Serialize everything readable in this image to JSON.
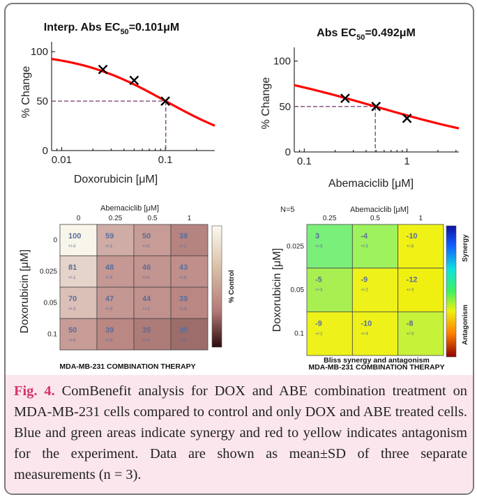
{
  "figure": {
    "caption_label": "Fig. 4.",
    "caption_text": " ComBenefit analysis for DOX and ABE combination treatment on MDA-MB-231 cells compared to control and only DOX and ABE treated cells. Blue and green areas indicate synergy and red to yellow indicates antagonism for the experiment. Data are shown as mean±SD of three separate measurements (n = 3)."
  },
  "chart_data": [
    {
      "type": "line",
      "title_prefix": "Interp. Abs EC",
      "title_sub": "50",
      "title_suffix": "=0.101μM",
      "xlabel": "Doxorubicin [μM]",
      "ylabel": "% Change",
      "xscale": "log",
      "xlim": [
        0.008,
        0.3
      ],
      "ylim": [
        0,
        110
      ],
      "xticks": [
        {
          "value": 0.01,
          "label": "0.01"
        },
        {
          "value": 0.1,
          "label": "0.1"
        }
      ],
      "yticks": [
        {
          "value": 0,
          "label": "0"
        },
        {
          "value": 50,
          "label": "50"
        },
        {
          "value": 100,
          "label": "100"
        }
      ],
      "fit": {
        "top": 100,
        "ec50": 0.101,
        "hill": 1.0
      },
      "points": [
        {
          "x": 0.025,
          "y": 82
        },
        {
          "x": 0.05,
          "y": 71
        },
        {
          "x": 0.1,
          "y": 50
        }
      ],
      "ec50_marker": {
        "x": 0.101,
        "y": 50
      },
      "colors": {
        "fit": "#ff0000",
        "marker": "#000000",
        "guide": "#7b4a78"
      }
    },
    {
      "type": "line",
      "title_prefix": "Abs EC",
      "title_sub": "50",
      "title_suffix": "=0.492μM",
      "xlabel": "Abemaciclib [μM]",
      "ylabel": "% Change",
      "xscale": "log",
      "xlim": [
        0.08,
        3.2
      ],
      "ylim": [
        0,
        115
      ],
      "xticks": [
        {
          "value": 0.1,
          "label": "0.1"
        },
        {
          "value": 1,
          "label": "1"
        }
      ],
      "yticks": [
        {
          "value": 0,
          "label": "0"
        },
        {
          "value": 50,
          "label": "50"
        },
        {
          "value": 100,
          "label": "100"
        }
      ],
      "fit": {
        "top": 100,
        "ec50": 0.492,
        "hill": 0.56
      },
      "points": [
        {
          "x": 0.25,
          "y": 59
        },
        {
          "x": 0.5,
          "y": 50
        },
        {
          "x": 1,
          "y": 37
        }
      ],
      "ec50_marker": {
        "x": 0.492,
        "y": 50
      },
      "colors": {
        "fit": "#ff0000",
        "marker": "#000000",
        "guide": "#7b4a78"
      }
    },
    {
      "type": "heatmap",
      "x_title": "Abemaciclib [μM]",
      "y_title": "Doxorubicin [μM]",
      "x_categories": [
        "0",
        "0.25",
        "0.5",
        "1"
      ],
      "y_categories": [
        "0",
        "0.025",
        "0.05",
        "0.1"
      ],
      "values": [
        [
          100,
          59,
          50,
          38
        ],
        [
          81,
          48,
          46,
          43
        ],
        [
          70,
          47,
          44,
          39
        ],
        [
          50,
          39,
          35,
          30
        ]
      ],
      "sd_labels": [
        [
          "+/-0",
          "+/-1",
          "+/-0",
          "+/-1"
        ],
        [
          "+/-1",
          "+/-5",
          "+/-0",
          "+/-8"
        ],
        [
          "+/-3",
          "+/-3",
          "+/-3",
          "+/-3"
        ],
        [
          "+/-0",
          "+/-3",
          "+/-4",
          "+/-5"
        ]
      ],
      "colorbar_label": "% Control",
      "footer": "MDA-MB-231 COMBINATION THERAPY",
      "colors": {
        "high": "#f8f6ea",
        "mid": "#bd8a86",
        "low": "#3a1414"
      }
    },
    {
      "type": "heatmap",
      "n_label": "N=5",
      "x_title": "Abemaciclib [μM]",
      "y_title": "Doxorubicin [μM]",
      "x_categories": [
        "0.25",
        "0.5",
        "1"
      ],
      "y_categories": [
        "0.025",
        "0.05",
        "0.1"
      ],
      "values": [
        [
          3,
          -4,
          -10
        ],
        [
          -5,
          -9,
          -12
        ],
        [
          -9,
          -10,
          -8
        ]
      ],
      "sd_labels": [
        [
          "+/-5",
          "+/-5",
          "+/-8"
        ],
        [
          "+/-3",
          "+/-2",
          "+/-3"
        ],
        [
          "+/-2",
          "+/-4",
          "+/-3"
        ]
      ],
      "cell_colors": [
        [
          "#7af07a",
          "#9ef25e",
          "#f0f216"
        ],
        [
          "#a8f052",
          "#eef21a",
          "#f0f010"
        ],
        [
          "#eef21a",
          "#eef21a",
          "#c6f23a"
        ]
      ],
      "colorbar_top_label": "Synergy",
      "colorbar_bottom_label": "Antagonism",
      "subtitle": "Bliss synergy and antagonism",
      "footer": "MDA-MB-231 COMBINATION THERAPY"
    }
  ]
}
